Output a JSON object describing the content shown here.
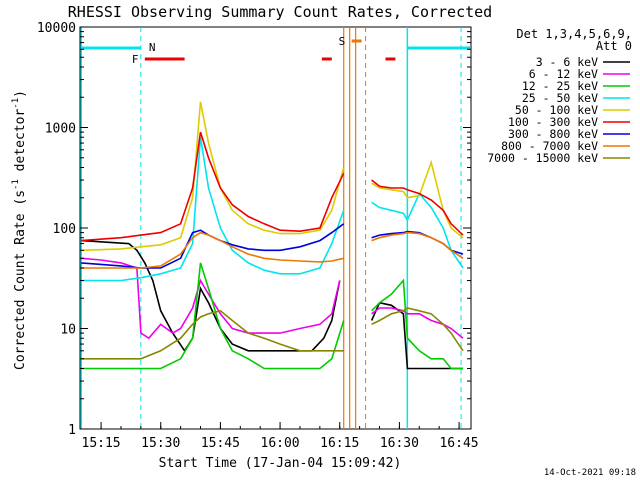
{
  "chart_data": {
    "type": "line",
    "title": "RHESSI Observing Summary Count Rates, Corrected",
    "xlabel": "Start Time (17-Jan-04 15:09:42)",
    "ylabel": "Corrected Count Rate (s^-1 detector^-1)",
    "ylabel_main": "Corrected Count Rate (s",
    "ylabel_sup1": "-1",
    "ylabel_mid": " detector",
    "ylabel_sup2": "-1",
    "ylabel_end": ")",
    "y_scale": "log",
    "xlim": [
      "15:09:42",
      "16:48:00"
    ],
    "ylim": [
      1,
      10000
    ],
    "x_ticks": [
      "15:15",
      "15:30",
      "15:45",
      "16:00",
      "16:15",
      "16:30",
      "16:45"
    ],
    "y_ticks": [
      "1",
      "10",
      "100",
      "1000",
      "10000"
    ],
    "grid": false,
    "legend_position": "right",
    "legend_header": [
      "Det 1,3,4,5,6,9,",
      "Att 0"
    ],
    "timestamp": "14-Oct-2021 09:18",
    "flags": {
      "N": {
        "label": "N",
        "color": "#00e5ee"
      },
      "F": {
        "label": "F",
        "color": "#ee0000"
      },
      "S": {
        "label": "S",
        "color": "#ee7700"
      }
    },
    "series": [
      {
        "name": "3 - 6 keV",
        "color": "#000000",
        "x": [
          "15:10",
          "15:22",
          "15:24",
          "15:26",
          "15:28",
          "15:30",
          "15:33",
          "15:36",
          "15:38",
          "15:40",
          "15:42",
          "15:45",
          "15:48",
          "15:52",
          "15:56",
          "16:00",
          "16:04",
          "16:08",
          "16:11",
          "16:13",
          "16:15"
        ],
        "y": [
          75,
          70,
          60,
          45,
          30,
          15,
          9,
          6,
          8,
          25,
          18,
          10,
          7,
          6,
          6,
          6,
          6,
          6,
          8,
          12,
          30
        ]
      },
      {
        "name": "6 - 12 keV",
        "color": "#ee00ee",
        "x": [
          "15:10",
          "15:15",
          "15:20",
          "15:24",
          "15:25",
          "15:27",
          "15:30",
          "15:33",
          "15:35",
          "15:38",
          "15:40",
          "15:42",
          "15:45",
          "15:48",
          "15:52",
          "15:56",
          "16:00",
          "16:05",
          "16:10",
          "16:13",
          "16:15"
        ],
        "y": [
          50,
          48,
          45,
          40,
          9,
          8,
          11,
          9,
          10,
          16,
          30,
          22,
          14,
          10,
          9,
          9,
          9,
          10,
          11,
          14,
          30
        ]
      },
      {
        "name": "12 - 25 keV",
        "color": "#00cc00",
        "x": [
          "15:10",
          "15:20",
          "15:25",
          "15:30",
          "15:35",
          "15:38",
          "15:40",
          "15:42",
          "15:45",
          "15:48",
          "15:52",
          "15:56",
          "16:00",
          "16:05",
          "16:10",
          "16:13",
          "16:16"
        ],
        "y": [
          4,
          4,
          4,
          4,
          5,
          8,
          45,
          25,
          10,
          6,
          5,
          4,
          4,
          4,
          4,
          5,
          12
        ]
      },
      {
        "name": "25 - 50 keV",
        "color": "#00e5ee",
        "x": [
          "15:10",
          "15:20",
          "15:25",
          "15:30",
          "15:35",
          "15:38",
          "15:40",
          "15:42",
          "15:45",
          "15:48",
          "15:52",
          "15:56",
          "16:00",
          "16:05",
          "16:10",
          "16:13",
          "16:16"
        ],
        "y": [
          30,
          30,
          32,
          35,
          40,
          70,
          800,
          250,
          100,
          60,
          45,
          38,
          35,
          35,
          40,
          70,
          150
        ]
      },
      {
        "name": "50 - 100 keV",
        "color": "#ddcc00",
        "x": [
          "15:10",
          "15:20",
          "15:25",
          "15:30",
          "15:35",
          "15:38",
          "15:40",
          "15:42",
          "15:45",
          "15:48",
          "15:52",
          "15:56",
          "16:00",
          "16:05",
          "16:10",
          "16:13",
          "16:16"
        ],
        "y": [
          60,
          62,
          65,
          68,
          80,
          200,
          1800,
          700,
          250,
          150,
          110,
          95,
          88,
          88,
          95,
          150,
          400
        ]
      },
      {
        "name": "100 - 300 keV",
        "color": "#ee0000",
        "x": [
          "15:10",
          "15:20",
          "15:25",
          "15:30",
          "15:35",
          "15:38",
          "15:40",
          "15:42",
          "15:45",
          "15:48",
          "15:52",
          "15:56",
          "16:00",
          "16:05",
          "16:10",
          "16:13",
          "16:16"
        ],
        "y": [
          75,
          80,
          85,
          90,
          110,
          250,
          900,
          500,
          250,
          170,
          130,
          110,
          95,
          93,
          100,
          200,
          350
        ]
      },
      {
        "name": "300 - 800 keV",
        "color": "#0000dd",
        "x": [
          "15:10",
          "15:20",
          "15:25",
          "15:30",
          "15:35",
          "15:38",
          "15:40",
          "15:42",
          "15:45",
          "15:48",
          "15:52",
          "15:56",
          "16:00",
          "16:05",
          "16:10",
          "16:13",
          "16:16"
        ],
        "y": [
          45,
          42,
          40,
          40,
          50,
          90,
          95,
          85,
          75,
          68,
          62,
          60,
          60,
          65,
          75,
          90,
          110
        ]
      },
      {
        "name": "800 - 7000 keV",
        "color": "#ee7700",
        "x": [
          "15:10",
          "15:20",
          "15:25",
          "15:30",
          "15:35",
          "15:38",
          "15:40",
          "15:42",
          "15:45",
          "15:48",
          "15:52",
          "15:56",
          "16:00",
          "16:05",
          "16:10",
          "16:13",
          "16:16"
        ],
        "y": [
          40,
          40,
          40,
          42,
          55,
          80,
          90,
          85,
          75,
          65,
          55,
          50,
          48,
          47,
          46,
          47,
          50
        ]
      },
      {
        "name": "7000 - 15000 keV",
        "color": "#888800",
        "x": [
          "15:10",
          "15:20",
          "15:25",
          "15:30",
          "15:35",
          "15:38",
          "15:40",
          "15:42",
          "15:45",
          "15:48",
          "15:52",
          "15:56",
          "16:00",
          "16:05",
          "16:10",
          "16:13",
          "16:16"
        ],
        "y": [
          5,
          5,
          5,
          6,
          8,
          11,
          13,
          14,
          15,
          12,
          9,
          8,
          7,
          6,
          6,
          6,
          6
        ]
      }
    ],
    "series_after_gap": [
      {
        "x": [
          "16:23",
          "16:25",
          "16:28",
          "16:31",
          "16:32",
          "16:35",
          "16:38",
          "16:41",
          "16:43",
          "16:46"
        ],
        "data": {
          "3 - 6 keV": [
            12,
            18,
            17,
            14,
            4,
            4,
            4,
            4,
            4,
            4
          ],
          "6 - 12 keV": [
            14,
            16,
            16,
            15,
            14,
            14,
            12,
            11,
            10,
            8
          ],
          "12 - 25 keV": [
            15,
            18,
            22,
            30,
            8,
            6,
            5,
            5,
            4,
            4
          ],
          "25 - 50 keV": [
            180,
            160,
            150,
            140,
            120,
            220,
            160,
            100,
            60,
            40
          ],
          "50 - 100 keV": [
            280,
            250,
            240,
            230,
            200,
            210,
            450,
            150,
            100,
            80
          ],
          "100 - 300 keV": [
            300,
            260,
            250,
            250,
            240,
            220,
            190,
            150,
            110,
            85
          ],
          "300 - 800 keV": [
            80,
            85,
            88,
            90,
            92,
            90,
            80,
            70,
            60,
            55
          ],
          "800 - 7000 keV": [
            75,
            80,
            85,
            88,
            90,
            88,
            80,
            70,
            60,
            50
          ],
          "7000 - 15000 keV": [
            11,
            12,
            14,
            15,
            16,
            15,
            14,
            11,
            9,
            6
          ]
        }
      }
    ]
  }
}
